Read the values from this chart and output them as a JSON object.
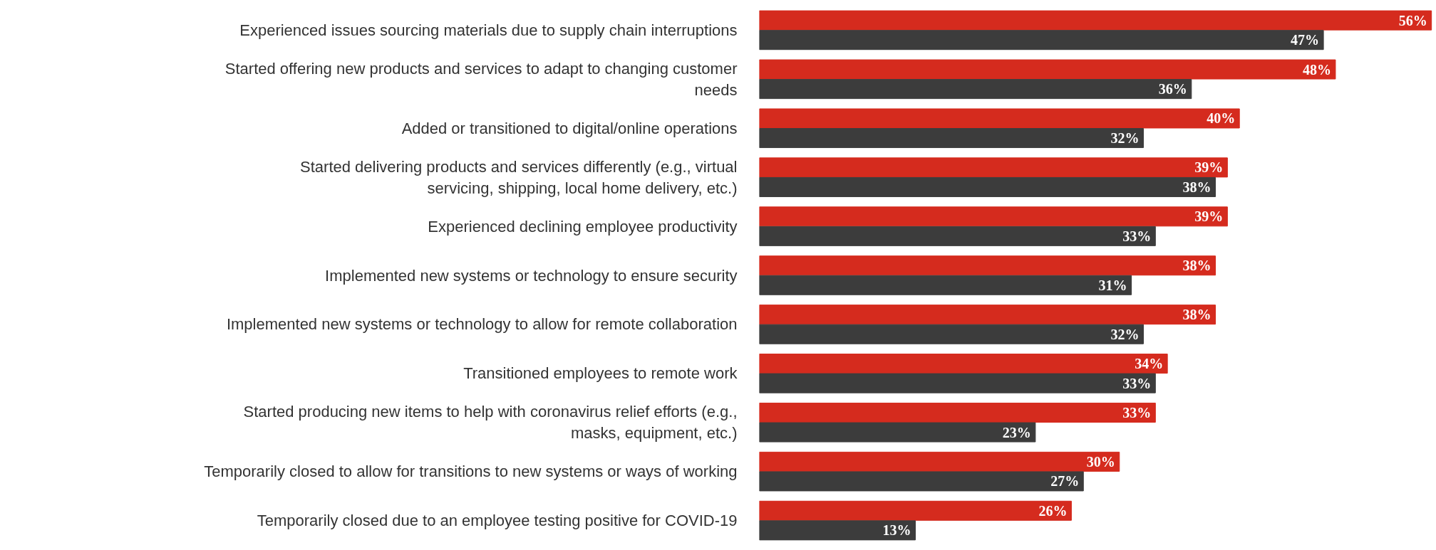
{
  "chart_data": {
    "type": "bar",
    "orientation": "horizontal",
    "categories": [
      "Experienced issues sourcing materials due to supply chain interruptions",
      "Started offering new products and services to adapt to changing customer needs",
      "Added or transitioned to digital/online operations",
      "Started delivering products and services differently (e.g., virtual servicing, shipping, local home delivery, etc.)",
      "Experienced declining employee productivity",
      "Implemented new systems or technology to ensure security",
      "Implemented new systems or technology to allow for remote collaboration",
      "Transitioned employees to remote work",
      "Started producing new items to help with coronavirus relief efforts (e.g., masks, equipment, etc.)",
      "Temporarily closed to allow for transitions to new systems or ways of working",
      "Temporarily closed due to an employee testing positive for COVID-19"
    ],
    "series": [
      {
        "color": "#d52b1e",
        "values": [
          56,
          48,
          40,
          39,
          39,
          38,
          38,
          34,
          33,
          30,
          26
        ],
        "value_labels": [
          "56%",
          "48%",
          "40%",
          "39%",
          "39%",
          "38%",
          "38%",
          "34%",
          "33%",
          "30%",
          "26%"
        ]
      },
      {
        "color": "#3c3c3c",
        "values": [
          47,
          36,
          32,
          38,
          33,
          31,
          32,
          33,
          23,
          27,
          13
        ],
        "value_labels": [
          "47%",
          "36%",
          "32%",
          "38%",
          "33%",
          "31%",
          "32%",
          "33%",
          "23%",
          "27%",
          "13%"
        ]
      }
    ]
  }
}
